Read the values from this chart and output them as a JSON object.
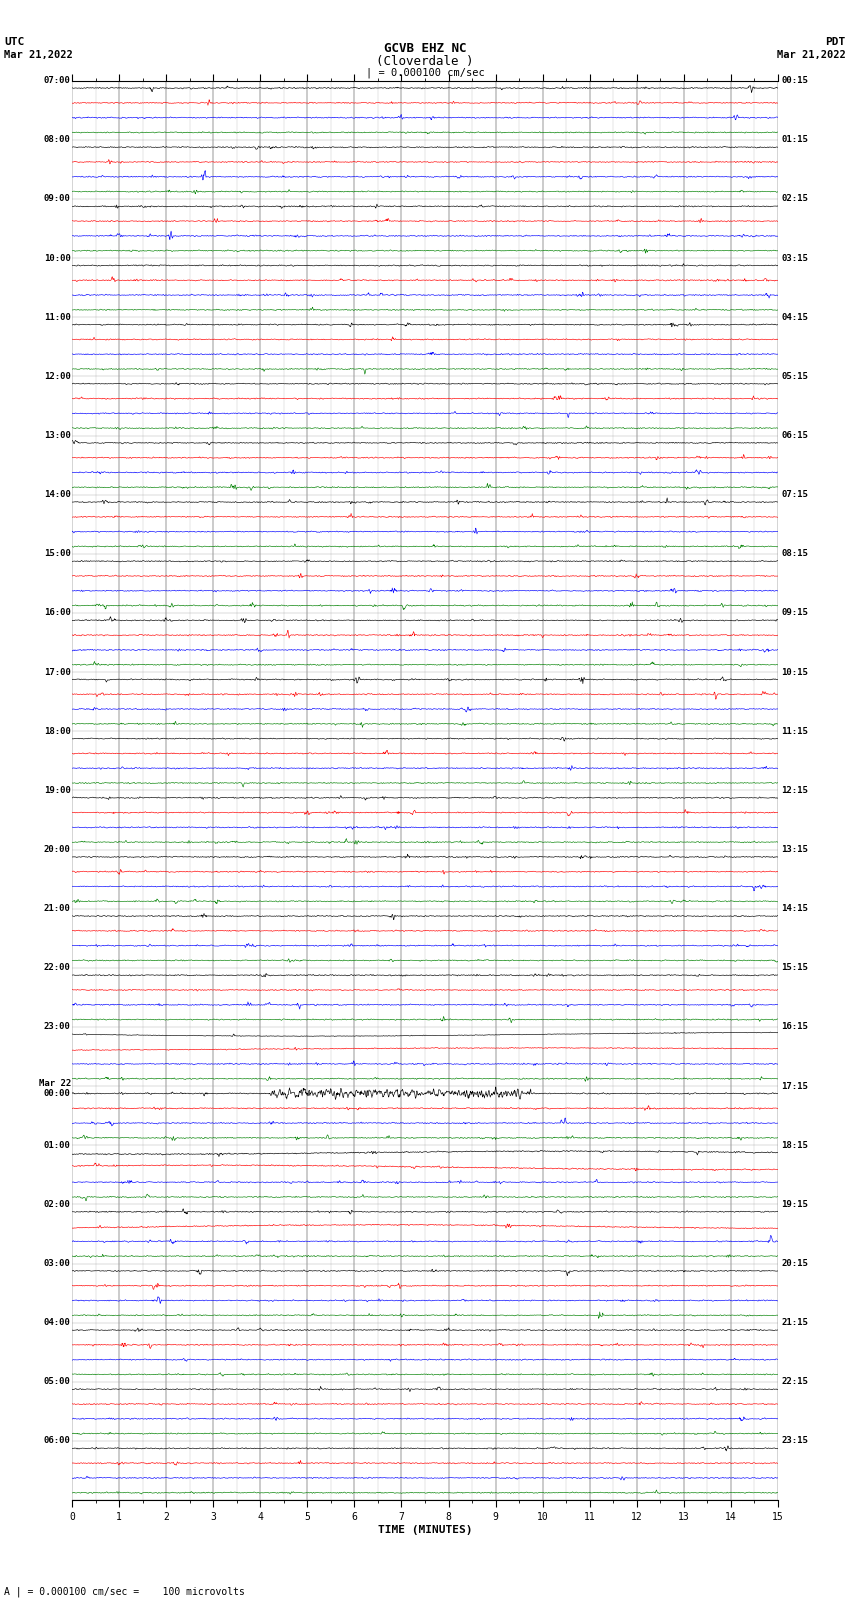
{
  "title_line1": "GCVB EHZ NC",
  "title_line2": "(Cloverdale )",
  "title_scale": "| = 0.000100 cm/sec",
  "xlabel": "TIME (MINUTES)",
  "footer": "A | = 0.000100 cm/sec =    100 microvolts",
  "xlim": [
    0,
    15
  ],
  "background_color": "#ffffff",
  "trace_colors": [
    "black",
    "red",
    "blue",
    "green"
  ],
  "left_times": [
    "07:00",
    "",
    "",
    "",
    "08:00",
    "",
    "",
    "",
    "09:00",
    "",
    "",
    "",
    "10:00",
    "",
    "",
    "",
    "11:00",
    "",
    "",
    "",
    "12:00",
    "",
    "",
    "",
    "13:00",
    "",
    "",
    "",
    "14:00",
    "",
    "",
    "",
    "15:00",
    "",
    "",
    "",
    "16:00",
    "",
    "",
    "",
    "17:00",
    "",
    "",
    "",
    "18:00",
    "",
    "",
    "",
    "19:00",
    "",
    "",
    "",
    "20:00",
    "",
    "",
    "",
    "21:00",
    "",
    "",
    "",
    "22:00",
    "",
    "",
    "",
    "23:00",
    "",
    "",
    "",
    "Mar 22\n00:00",
    "",
    "",
    "",
    "01:00",
    "",
    "",
    "",
    "02:00",
    "",
    "",
    "",
    "03:00",
    "",
    "",
    "",
    "04:00",
    "",
    "",
    "",
    "05:00",
    "",
    "",
    "",
    "06:00",
    "",
    "",
    ""
  ],
  "right_times": [
    "00:15",
    "",
    "",
    "",
    "01:15",
    "",
    "",
    "",
    "02:15",
    "",
    "",
    "",
    "03:15",
    "",
    "",
    "",
    "04:15",
    "",
    "",
    "",
    "05:15",
    "",
    "",
    "",
    "06:15",
    "",
    "",
    "",
    "07:15",
    "",
    "",
    "",
    "08:15",
    "",
    "",
    "",
    "09:15",
    "",
    "",
    "",
    "10:15",
    "",
    "",
    "",
    "11:15",
    "",
    "",
    "",
    "12:15",
    "",
    "",
    "",
    "13:15",
    "",
    "",
    "",
    "14:15",
    "",
    "",
    "",
    "15:15",
    "",
    "",
    "",
    "16:15",
    "",
    "",
    "",
    "17:15",
    "",
    "",
    "",
    "18:15",
    "",
    "",
    "",
    "19:15",
    "",
    "",
    "",
    "20:15",
    "",
    "",
    "",
    "21:15",
    "",
    "",
    "",
    "22:15",
    "",
    "",
    "",
    "23:15",
    "",
    "",
    ""
  ],
  "n_rows": 96,
  "traces_per_row": 4,
  "noise_amplitude": 0.03
}
